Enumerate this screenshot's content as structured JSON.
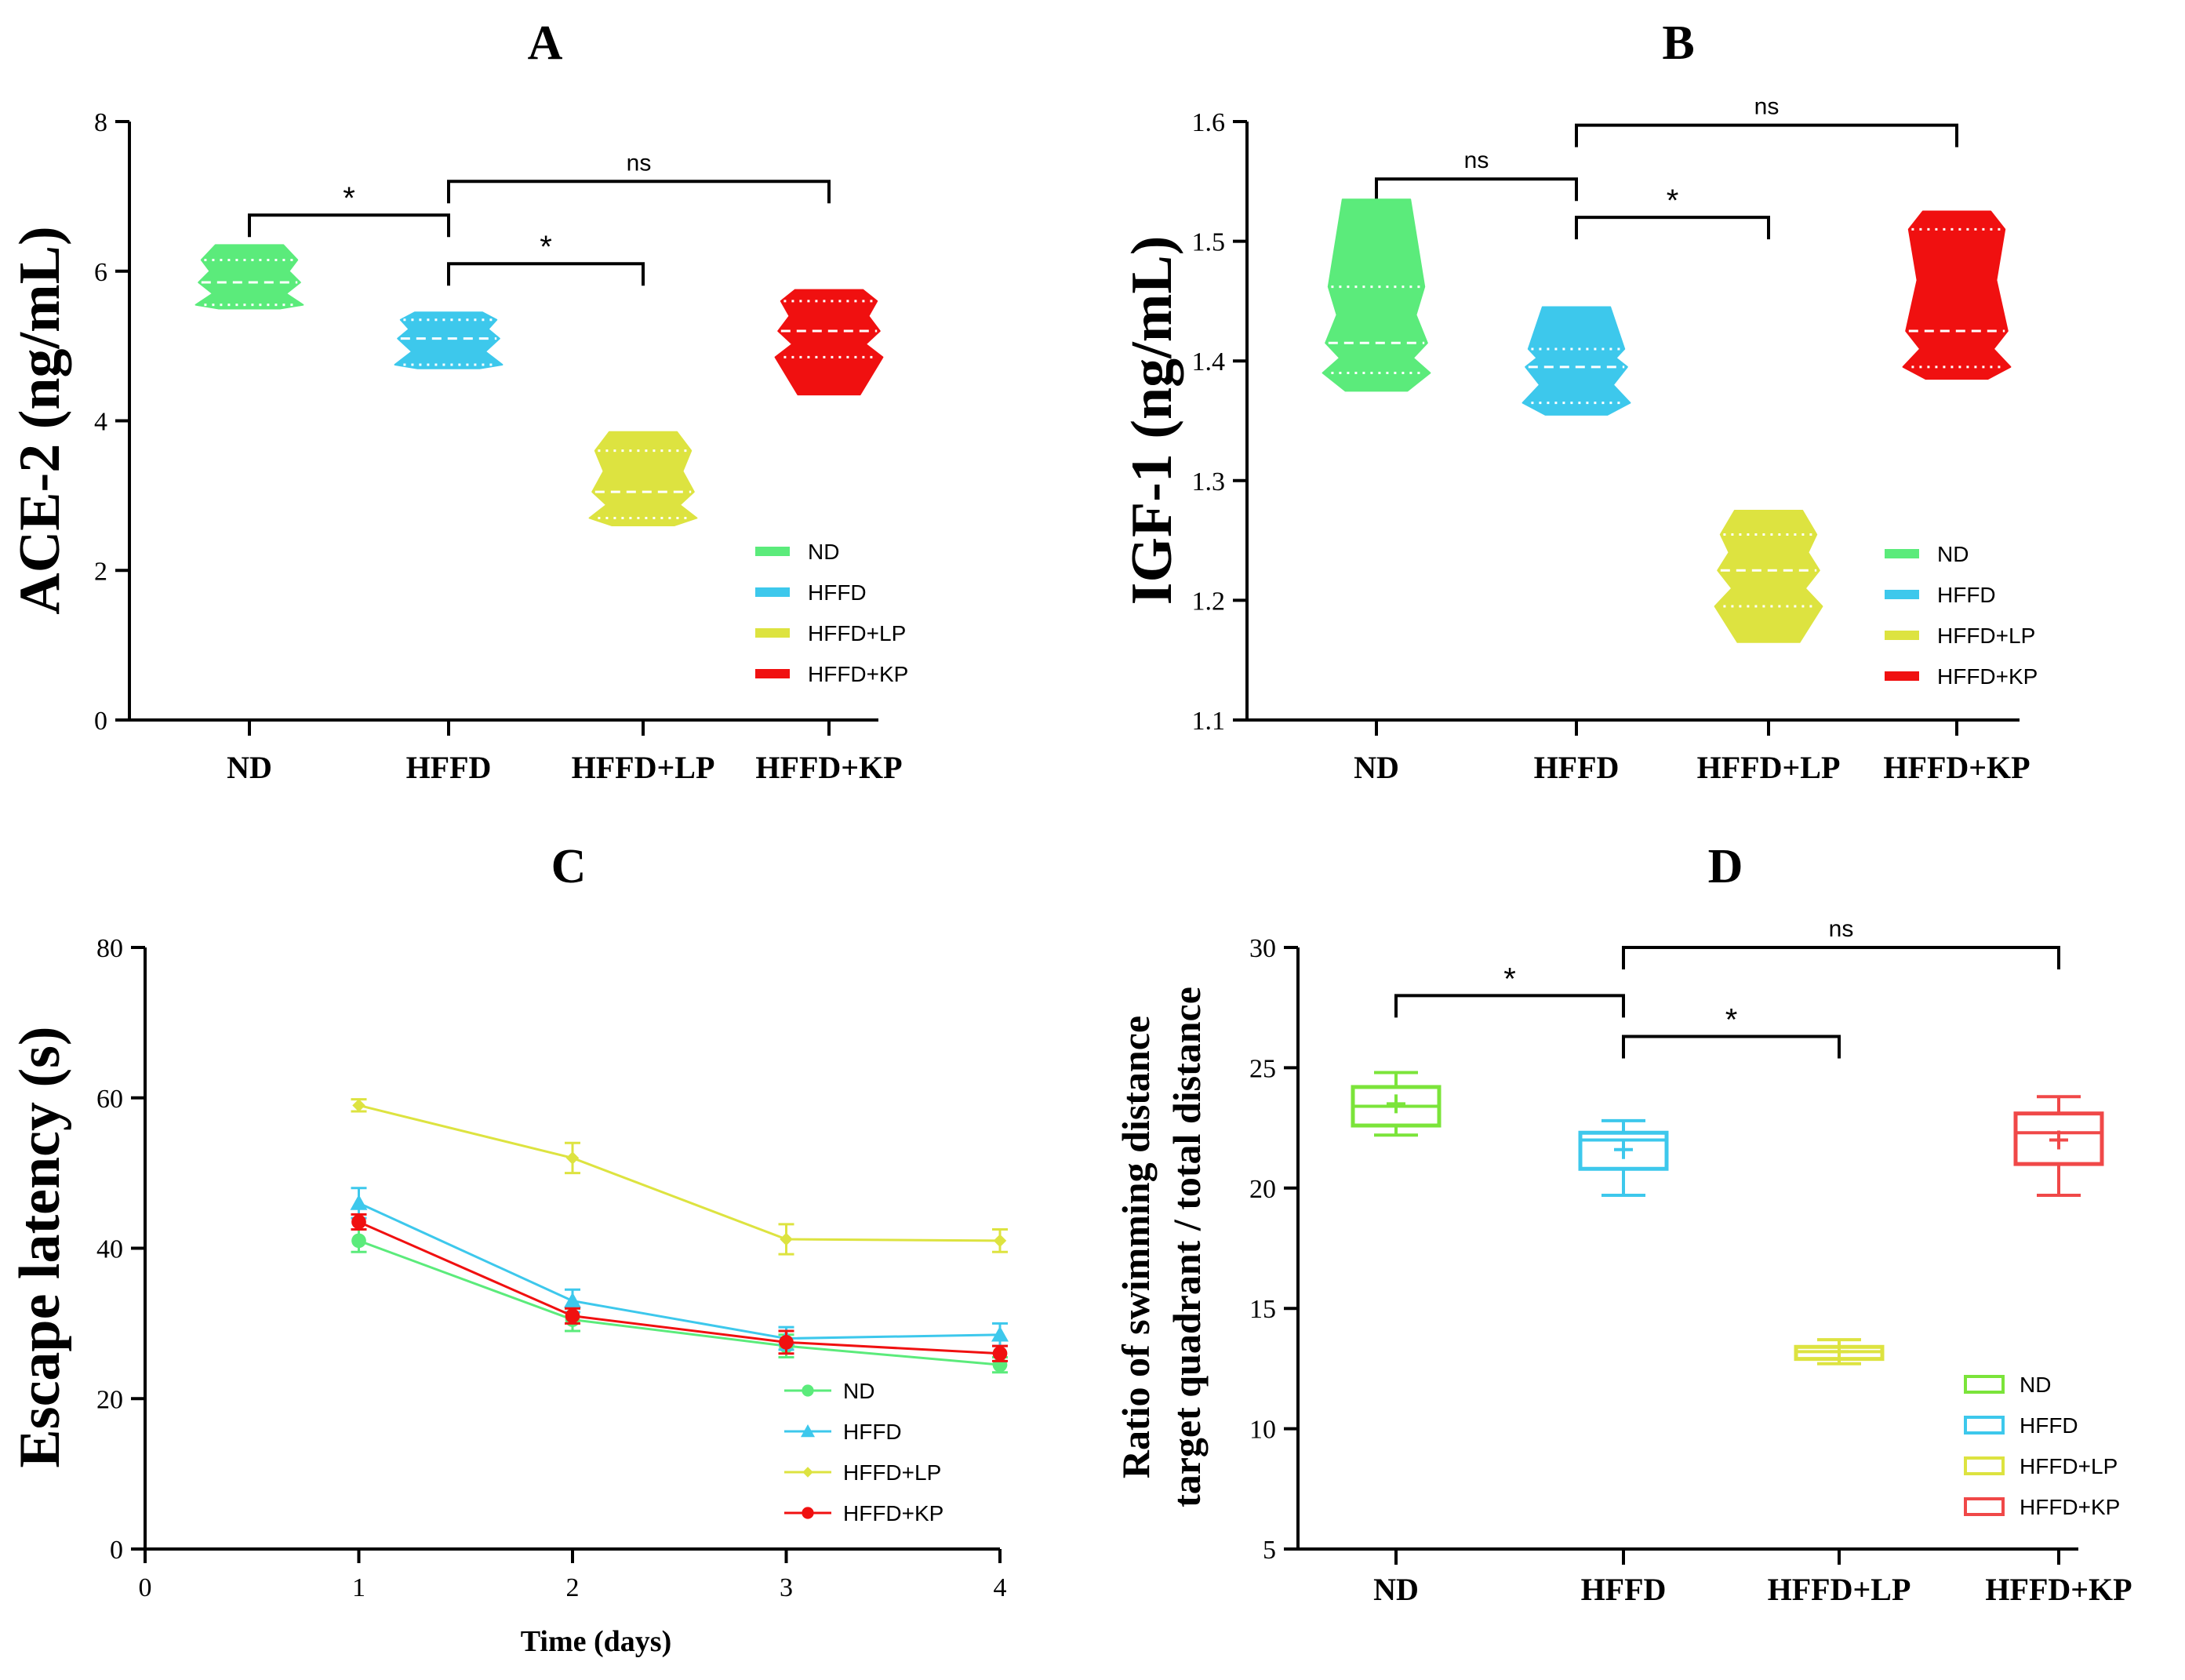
{
  "chart_data": [
    {
      "panel": "A",
      "type": "violin",
      "ylabel": "ACE-2 (ng/mL)",
      "ylim": [
        0,
        8
      ],
      "yticks": [
        0,
        2,
        4,
        6,
        8
      ],
      "categories": [
        "ND",
        "HFFD",
        "HFFD+LP",
        "HFFD+KP"
      ],
      "series": [
        {
          "name": "ND",
          "color": "#5BEB7B",
          "min": 5.5,
          "q1": 5.55,
          "median": 5.85,
          "q3": 6.15,
          "max": 6.35
        },
        {
          "name": "HFFD",
          "color": "#3DC8EC",
          "min": 4.7,
          "q1": 4.75,
          "median": 5.1,
          "q3": 5.35,
          "max": 5.45
        },
        {
          "name": "HFFD+LP",
          "color": "#DDE340",
          "min": 2.6,
          "q1": 2.7,
          "median": 3.05,
          "q3": 3.6,
          "max": 3.85
        },
        {
          "name": "HFFD+KP",
          "color": "#F01010",
          "min": 4.35,
          "q1": 4.85,
          "median": 5.2,
          "q3": 5.6,
          "max": 5.75
        }
      ],
      "significance": [
        {
          "from": "ND",
          "to": "HFFD",
          "y": 6.75,
          "label": "*"
        },
        {
          "from": "HFFD",
          "to": "HFFD+LP",
          "y": 6.1,
          "label": "*"
        },
        {
          "from": "HFFD",
          "to": "HFFD+KP",
          "y": 7.2,
          "label": "ns"
        }
      ],
      "legend": [
        "ND",
        "HFFD",
        "HFFD+LP",
        "HFFD+KP"
      ]
    },
    {
      "panel": "B",
      "type": "violin",
      "ylabel": "IGF-1 (ng/mL)",
      "ylim": [
        1.1,
        1.6
      ],
      "yticks": [
        1.1,
        1.2,
        1.3,
        1.4,
        1.5,
        1.6
      ],
      "categories": [
        "ND",
        "HFFD",
        "HFFD+LP",
        "HFFD+KP"
      ],
      "series": [
        {
          "name": "ND",
          "color": "#5BEB7B",
          "min": 1.375,
          "q1": 1.39,
          "median": 1.415,
          "q3": 1.462,
          "max": 1.535
        },
        {
          "name": "HFFD",
          "color": "#3DC8EC",
          "min": 1.355,
          "q1": 1.365,
          "median": 1.395,
          "q3": 1.41,
          "max": 1.445
        },
        {
          "name": "HFFD+LP",
          "color": "#DDE340",
          "min": 1.165,
          "q1": 1.195,
          "median": 1.225,
          "q3": 1.255,
          "max": 1.275
        },
        {
          "name": "HFFD+KP",
          "color": "#F01010",
          "min": 1.385,
          "q1": 1.395,
          "median": 1.425,
          "q3": 1.51,
          "max": 1.525
        }
      ],
      "significance": [
        {
          "from": "ND",
          "to": "HFFD",
          "y": 1.552,
          "label": "ns"
        },
        {
          "from": "HFFD",
          "to": "HFFD+LP",
          "y": 1.52,
          "label": "*"
        },
        {
          "from": "HFFD",
          "to": "HFFD+KP",
          "y": 1.597,
          "label": "ns"
        }
      ],
      "legend": [
        "ND",
        "HFFD",
        "HFFD+LP",
        "HFFD+KP"
      ]
    },
    {
      "panel": "C",
      "type": "line",
      "xlabel": "Time (days)",
      "ylabel": "Escape latency (s)",
      "xlim": [
        0,
        4
      ],
      "ylim": [
        0,
        80
      ],
      "xticks": [
        0,
        1,
        2,
        3,
        4
      ],
      "yticks": [
        0,
        20,
        40,
        60,
        80
      ],
      "x": [
        1,
        2,
        3,
        4
      ],
      "series": [
        {
          "name": "ND",
          "color": "#5BEB7B",
          "marker": "circle",
          "values": [
            41,
            30.5,
            27,
            24.5
          ],
          "err": [
            1.5,
            1.5,
            1.5,
            1
          ]
        },
        {
          "name": "HFFD",
          "color": "#3DC8EC",
          "marker": "triangle",
          "values": [
            46,
            33,
            28,
            28.5
          ],
          "err": [
            2,
            1.5,
            1.5,
            1.5
          ]
        },
        {
          "name": "HFFD+LP",
          "color": "#DDE340",
          "marker": "diamond",
          "values": [
            59,
            52,
            41.2,
            41
          ],
          "err": [
            0.8,
            2,
            2,
            1.5
          ]
        },
        {
          "name": "HFFD+KP",
          "color": "#F01010",
          "marker": "circle",
          "values": [
            43.5,
            31,
            27.5,
            26
          ],
          "err": [
            1,
            1,
            1.5,
            1
          ]
        }
      ],
      "legend": [
        "ND",
        "HFFD",
        "HFFD+LP",
        "HFFD+KP"
      ]
    },
    {
      "panel": "D",
      "type": "box",
      "ylabel_line1": "Ratio of swimming distance",
      "ylabel_line2": "target quadrant / total distance",
      "ylim": [
        5,
        30
      ],
      "yticks": [
        5,
        10,
        15,
        20,
        25,
        30
      ],
      "categories": [
        "ND",
        "HFFD",
        "HFFD+LP",
        "HFFD+KP"
      ],
      "series": [
        {
          "name": "ND",
          "color": "#7BE43A",
          "min": 22.2,
          "q1": 22.6,
          "median": 23.4,
          "q3": 24.2,
          "max": 24.8,
          "mean": 23.5
        },
        {
          "name": "HFFD",
          "color": "#3DC8EC",
          "min": 19.7,
          "q1": 20.8,
          "median": 22.0,
          "q3": 22.3,
          "max": 22.8,
          "mean": 21.6
        },
        {
          "name": "HFFD+LP",
          "color": "#DDE340",
          "min": 12.7,
          "q1": 12.9,
          "median": 13.2,
          "q3": 13.4,
          "max": 13.7,
          "mean": 13.2
        },
        {
          "name": "HFFD+KP",
          "color": "#F04848",
          "min": 19.7,
          "q1": 21.0,
          "median": 22.3,
          "q3": 23.1,
          "max": 23.8,
          "mean": 22.0
        }
      ],
      "significance": [
        {
          "from": "ND",
          "to": "HFFD",
          "y": 28.0,
          "label": "*"
        },
        {
          "from": "HFFD",
          "to": "HFFD+LP",
          "y": 26.3,
          "label": "*"
        },
        {
          "from": "HFFD",
          "to": "HFFD+KP",
          "y": 30.0,
          "label": "ns"
        }
      ],
      "legend": [
        "ND",
        "HFFD",
        "HFFD+LP",
        "HFFD+KP"
      ]
    }
  ]
}
